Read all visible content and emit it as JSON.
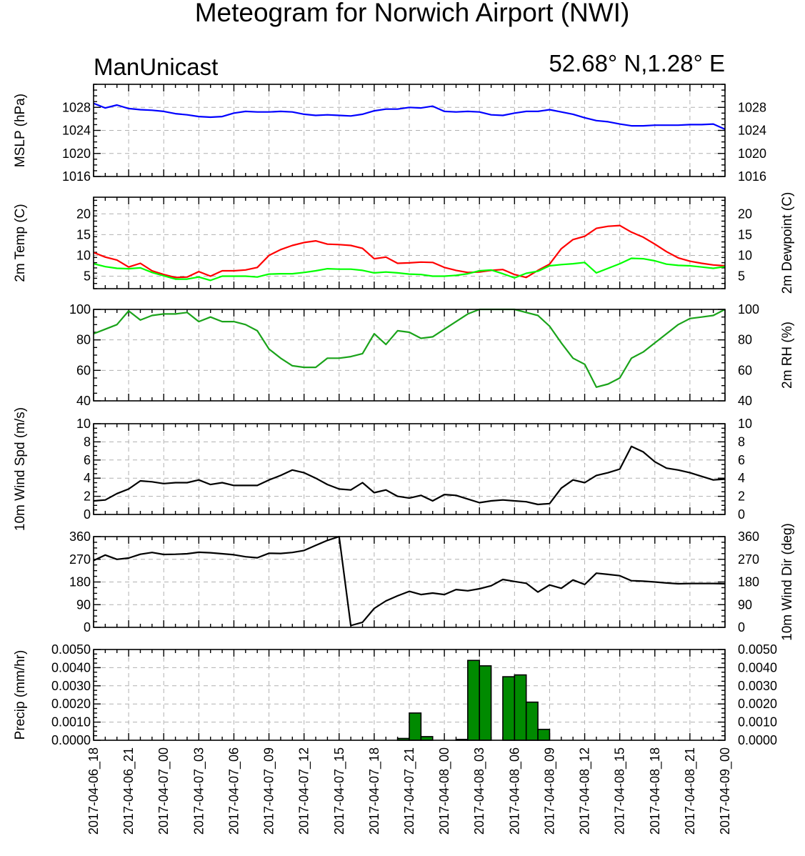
{
  "header": {
    "title": "Meteogram for Norwich Airport (NWI)",
    "left_label": "ManUnicast",
    "right_label": "52.68° N,1.28° E"
  },
  "colors": {
    "mslp": "#0000ff",
    "temp": "#ff0000",
    "dewpoint": "#00ff00",
    "rh": "#1aa31a",
    "wind": "#000000",
    "precip_fill": "#008a00",
    "grid": "#b0b0b0"
  },
  "chart_data": [
    {
      "id": "mslp",
      "type": "line",
      "ylabel": "MSLP (hPa)",
      "ylim": [
        1016,
        1032
      ],
      "yticks": [
        1016,
        1020,
        1024,
        1028
      ],
      "ytick_labels": [
        "1016",
        "1020",
        "1024",
        "1028"
      ],
      "grid": true,
      "series": [
        {
          "values": [
            1028.7,
            1027.9,
            1028.4,
            1027.8,
            1027.6,
            1027.5,
            1027.3,
            1026.9,
            1026.7,
            1026.4,
            1026.3,
            1026.4,
            1027.0,
            1027.3,
            1027.2,
            1027.2,
            1027.3,
            1027.2,
            1026.8,
            1026.6,
            1026.7,
            1026.6,
            1026.5,
            1026.8,
            1027.4,
            1027.7,
            1027.7,
            1028.0,
            1027.9,
            1028.2,
            1027.3,
            1027.2,
            1027.3,
            1027.2,
            1026.7,
            1026.6,
            1027.0,
            1027.3,
            1027.3,
            1027.6,
            1027.2,
            1026.8,
            1026.2,
            1025.7,
            1025.5,
            1025.1,
            1024.8,
            1024.8,
            1024.9,
            1024.9,
            1024.9,
            1025.0,
            1025.0,
            1025.1,
            1024.2
          ]
        }
      ]
    },
    {
      "id": "temp",
      "type": "line",
      "ylabel": "2m Temp (C)",
      "ylabel_right": "2m Dewpoint (C)",
      "ylim": [
        2,
        24
      ],
      "yticks": [
        5,
        10,
        15,
        20
      ],
      "ytick_labels": [
        "5",
        "10",
        "15",
        "20"
      ],
      "grid": true,
      "series": [
        {
          "values": [
            10.7,
            9.6,
            8.9,
            7.2,
            8.1,
            6.3,
            5.4,
            4.7,
            4.8,
            6.1,
            5.0,
            6.3,
            6.3,
            6.5,
            7.1,
            10.0,
            11.4,
            12.4,
            13.1,
            13.5,
            12.7,
            12.6,
            12.4,
            11.7,
            9.2,
            9.6,
            8.1,
            8.2,
            8.4,
            8.3,
            7.1,
            6.4,
            5.9,
            6.0,
            6.4,
            6.6,
            5.4,
            4.7,
            6.4,
            7.9,
            11.6,
            13.8,
            14.6,
            16.5,
            17.0,
            17.2,
            15.6,
            14.4,
            12.7,
            10.9,
            9.4,
            8.6,
            8.1,
            7.7,
            7.5
          ]
        },
        {
          "values": [
            8.0,
            7.3,
            6.9,
            6.8,
            7.0,
            5.9,
            5.1,
            4.3,
            4.3,
            4.8,
            4.0,
            5.0,
            5.0,
            5.0,
            4.8,
            5.5,
            5.6,
            5.6,
            5.9,
            6.3,
            6.8,
            6.7,
            6.7,
            6.4,
            5.8,
            6.0,
            5.8,
            5.5,
            5.4,
            5.0,
            5.0,
            5.2,
            5.6,
            6.3,
            6.5,
            5.6,
            4.6,
            5.7,
            6.2,
            7.5,
            7.8,
            8.0,
            8.3,
            5.8,
            6.9,
            8.0,
            9.3,
            9.2,
            8.7,
            7.9,
            7.6,
            7.5,
            7.2,
            6.9,
            7.3
          ]
        }
      ]
    },
    {
      "id": "rh",
      "type": "line",
      "ylabel_right": "2m RH (%)",
      "ylim": [
        40,
        100
      ],
      "yticks": [
        40,
        60,
        80,
        100
      ],
      "ytick_labels": [
        "40",
        "60",
        "80",
        "100"
      ],
      "grid": true,
      "series": [
        {
          "values": [
            84,
            87,
            90,
            99,
            93,
            96,
            97,
            97,
            98,
            92,
            95,
            92,
            92,
            90,
            86,
            74,
            68,
            63,
            62,
            62,
            68,
            68,
            69,
            71,
            84,
            77,
            86,
            85,
            81,
            82,
            87,
            92,
            97,
            100,
            100,
            100,
            100,
            98,
            96,
            89,
            78,
            68,
            64,
            49,
            51,
            55,
            68,
            72,
            78,
            84,
            90,
            94,
            95,
            96,
            100
          ]
        }
      ]
    },
    {
      "id": "wspd",
      "type": "line",
      "ylabel": "10m Wind Spd (m/s)",
      "ylim": [
        0,
        10
      ],
      "yticks": [
        0,
        2,
        4,
        6,
        8,
        10
      ],
      "ytick_labels": [
        "0",
        "2",
        "4",
        "6",
        "8",
        "10"
      ],
      "grid": true,
      "series": [
        {
          "values": [
            1.5,
            1.6,
            2.3,
            2.8,
            3.7,
            3.6,
            3.4,
            3.5,
            3.5,
            3.8,
            3.3,
            3.5,
            3.2,
            3.2,
            3.2,
            3.8,
            4.3,
            4.9,
            4.6,
            4.0,
            3.3,
            2.8,
            2.7,
            3.5,
            2.4,
            2.7,
            2.0,
            1.8,
            2.1,
            1.5,
            2.2,
            2.1,
            1.7,
            1.3,
            1.5,
            1.6,
            1.5,
            1.4,
            1.1,
            1.2,
            2.9,
            3.8,
            3.5,
            4.3,
            4.6,
            5.0,
            7.5,
            6.9,
            5.8,
            5.1,
            4.9,
            4.6,
            4.2,
            3.8,
            3.9
          ]
        }
      ]
    },
    {
      "id": "wdir",
      "type": "line",
      "ylabel_right": "10m Wind Dir (deg)",
      "ylim": [
        0,
        360
      ],
      "yticks": [
        0,
        90,
        180,
        270,
        360
      ],
      "ytick_labels": [
        "0",
        "90",
        "180",
        "270",
        "360"
      ],
      "grid": true,
      "series": [
        {
          "values": [
            265,
            287,
            270,
            275,
            290,
            297,
            289,
            290,
            292,
            298,
            296,
            292,
            288,
            280,
            276,
            294,
            293,
            297,
            305,
            325,
            345,
            360,
            7,
            20,
            75,
            105,
            125,
            143,
            130,
            136,
            130,
            150,
            145,
            153,
            165,
            190,
            182,
            175,
            140,
            168,
            155,
            188,
            170,
            215,
            210,
            205,
            185,
            183,
            180,
            176,
            173,
            174,
            174,
            174,
            173
          ]
        }
      ]
    },
    {
      "id": "precip",
      "type": "bar",
      "ylabel": "Precip (mm/hr)",
      "ylim": [
        0,
        0.005
      ],
      "yticks": [
        0,
        0.001,
        0.002,
        0.003,
        0.004,
        0.005
      ],
      "ytick_labels": [
        "0.0000",
        "0.0010",
        "0.0020",
        "0.0030",
        "0.0040",
        "0.0050"
      ],
      "grid": true,
      "bars": [
        {
          "index": 27,
          "value": 0.0001
        },
        {
          "index": 28,
          "value": 0.0015
        },
        {
          "index": 29,
          "value": 0.0002
        },
        {
          "index": 32,
          "value": 0.0
        },
        {
          "index": 33,
          "value": 0.0044
        },
        {
          "index": 34,
          "value": 0.0041
        },
        {
          "index": 36,
          "value": 0.0035
        },
        {
          "index": 37,
          "value": 0.0036
        },
        {
          "index": 38,
          "value": 0.0021
        },
        {
          "index": 39,
          "value": 0.0006
        }
      ]
    }
  ],
  "x_axis": {
    "n_points": 55,
    "tick_every": 3,
    "labels": [
      "2017-04-06_18",
      "2017-04-06_21",
      "2017-04-07_00",
      "2017-04-07_03",
      "2017-04-07_06",
      "2017-04-07_09",
      "2017-04-07_12",
      "2017-04-07_15",
      "2017-04-07_18",
      "2017-04-07_21",
      "2017-04-08_00",
      "2017-04-08_03",
      "2017-04-08_06",
      "2017-04-08_09",
      "2017-04-08_12",
      "2017-04-08_15",
      "2017-04-08_18",
      "2017-04-08_21",
      "2017-04-09_00"
    ]
  }
}
